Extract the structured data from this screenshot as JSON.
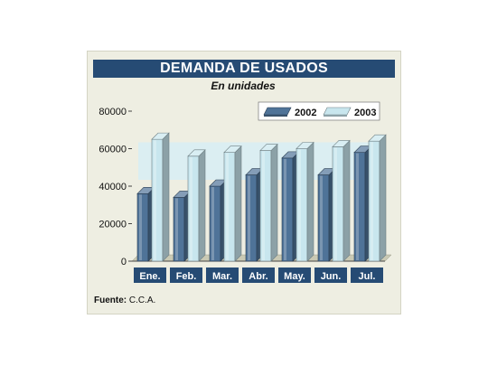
{
  "chart_data": {
    "type": "bar",
    "title": "DEMANDA DE USADOS",
    "subtitle": "En unidades",
    "categories": [
      "Ene.",
      "Feb.",
      "Mar.",
      "Abr.",
      "May.",
      "Jun.",
      "Jul."
    ],
    "series": [
      {
        "name": "2002",
        "values": [
          36000,
          34000,
          40000,
          46000,
          55000,
          46000,
          58000
        ],
        "color": "#4f7398"
      },
      {
        "name": "2003",
        "values": [
          65000,
          56000,
          58000,
          59000,
          60000,
          61000,
          64000
        ],
        "color": "#c8e6ee"
      }
    ],
    "yticks": [
      "0",
      "20000",
      "40000",
      "60000",
      "80000"
    ],
    "ylim": [
      0,
      80000
    ],
    "legend_position": "top-right",
    "grid": false
  },
  "source": {
    "label": "Fuente:",
    "text": "C.C.A."
  }
}
